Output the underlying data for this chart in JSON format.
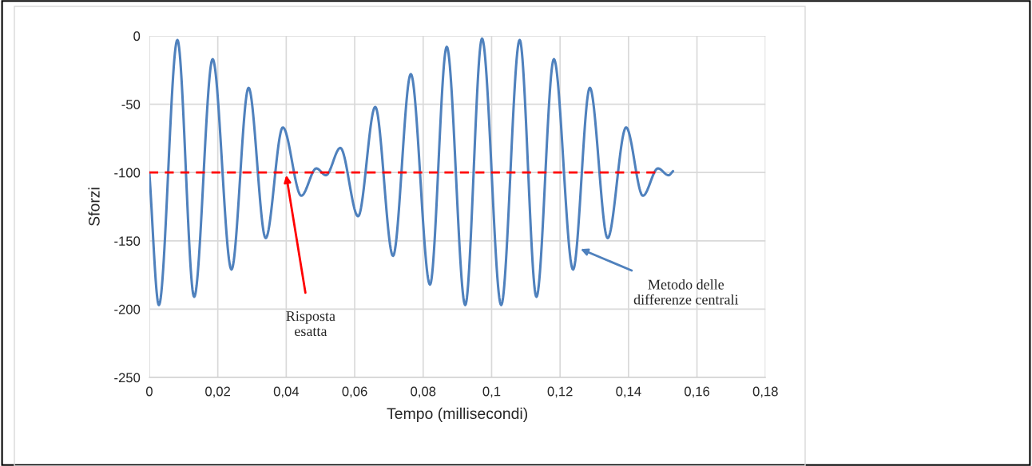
{
  "chart_data": {
    "type": "line",
    "xlabel": "Tempo (millisecondi)",
    "ylabel": "Sforzi",
    "series": [
      {
        "color": "#4f81bd",
        "line_style": "solid",
        "x": [
          0,
          0.0028,
          0.0082,
          0.0131,
          0.0185,
          0.024,
          0.029,
          0.034,
          0.039,
          0.0444,
          0.0488,
          0.0516,
          0.0558,
          0.061,
          0.066,
          0.0712,
          0.0764,
          0.082,
          0.0869,
          0.0923,
          0.0972,
          0.1028,
          0.1082,
          0.1131,
          0.1182,
          0.1238,
          0.1287,
          0.1339,
          0.1393,
          0.1442,
          0.1486,
          0.1517,
          0.153
        ],
        "values": [
          -100,
          -197,
          -3,
          -191,
          -17,
          -171,
          -38,
          -148,
          -67,
          -117,
          -97,
          -102,
          -82,
          -132,
          -52,
          -161,
          -28,
          -182,
          -8,
          -197,
          -2,
          -197,
          -3,
          -191,
          -17,
          -171,
          -38,
          -148,
          -67,
          -117,
          -97,
          -102,
          -99
        ]
      },
      {
        "color": "#ff0000",
        "line_style": "dashed",
        "x": [
          0,
          0.148
        ],
        "values": [
          -100,
          -100
        ]
      }
    ],
    "annotations": [
      {
        "text": "Risposta\nesatta",
        "x": 0.04,
        "y": -102
      },
      {
        "text": "Metodo delle\ndifferenze centrali",
        "x": 0.126,
        "y": -156
      }
    ],
    "xlim": [
      0,
      0.18
    ],
    "xticks": [
      0,
      {
        "value": 0.02,
        "label": "0,02"
      },
      {
        "value": 0.04,
        "label": "0,04"
      },
      {
        "value": 0.06,
        "label": "0,06"
      },
      {
        "value": 0.08,
        "label": "0,08"
      },
      {
        "value": 0.1,
        "label": "0,1"
      },
      {
        "value": 0.12,
        "label": "0,12"
      },
      {
        "value": 0.14,
        "label": "0,14"
      },
      {
        "value": 0.16,
        "label": "0,16"
      },
      {
        "value": 0.18,
        "label": "0,18"
      }
    ],
    "ylim": [
      -250,
      0
    ],
    "yticks": [
      -250,
      -200,
      -150,
      -100,
      -50,
      0
    ],
    "grid": true
  }
}
